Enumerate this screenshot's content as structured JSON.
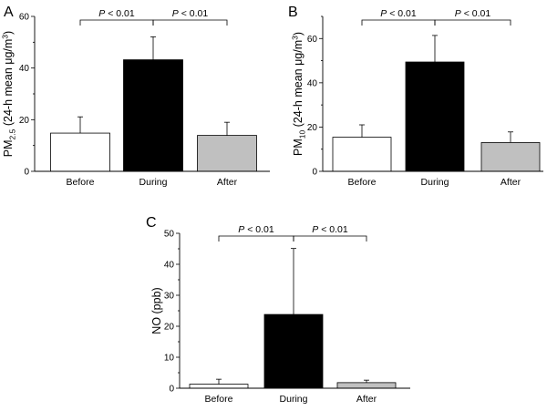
{
  "panel_letters": [
    "A",
    "B",
    "C"
  ],
  "colors": {
    "before": "#ffffff",
    "during": "#000000",
    "after": "#c0c0c0",
    "axis": "#000000"
  },
  "chart_data": [
    {
      "type": "bar",
      "panel": "A",
      "categories": [
        "Before",
        "During",
        "After"
      ],
      "values": [
        14.8,
        43.2,
        13.9
      ],
      "errors": [
        6.3,
        8.9,
        5.1
      ],
      "ylim": [
        0,
        60
      ],
      "yticks": [
        "0",
        "20",
        "40",
        "60"
      ],
      "ylabel": {
        "main": "PM",
        "sub": "2.5",
        "rest": " (24-h mean μg/m",
        "sup": "3",
        "close": ")"
      },
      "comparisons": [
        {
          "from": 0,
          "to": 1,
          "p_italic": "P",
          "label": " < 0.01"
        },
        {
          "from": 1,
          "to": 2,
          "p_italic": "P",
          "label": " < 0.01"
        }
      ]
    },
    {
      "type": "bar",
      "panel": "B",
      "categories": [
        "Before",
        "During",
        "After"
      ],
      "values": [
        15.4,
        49.4,
        13.0
      ],
      "errors": [
        5.6,
        12.0,
        4.8
      ],
      "ylim": [
        0,
        70
      ],
      "yticks": [
        "0",
        "20",
        "40",
        "60"
      ],
      "ylabel": {
        "main": "PM",
        "sub": "10",
        "rest": " (24-h mean μg/m",
        "sup": "3",
        "close": ")"
      },
      "comparisons": [
        {
          "from": 0,
          "to": 1,
          "p_italic": "P",
          "label": " < 0.01"
        },
        {
          "from": 1,
          "to": 2,
          "p_italic": "P",
          "label": " < 0.01"
        }
      ]
    },
    {
      "type": "bar",
      "panel": "C",
      "categories": [
        "Before",
        "During",
        "After"
      ],
      "values": [
        1.3,
        23.8,
        1.8
      ],
      "errors": [
        1.6,
        21.3,
        0.8
      ],
      "ylim": [
        0,
        50
      ],
      "yticks": [
        "0",
        "10",
        "20",
        "30",
        "40",
        "50"
      ],
      "ylabel": {
        "main": "NO (ppb)",
        "sub": "",
        "rest": "",
        "sup": "",
        "close": ""
      },
      "comparisons": [
        {
          "from": 0,
          "to": 1,
          "p_italic": "P",
          "label": " < 0.01"
        },
        {
          "from": 1,
          "to": 2,
          "p_italic": "P",
          "label": " < 0.01"
        }
      ]
    }
  ]
}
